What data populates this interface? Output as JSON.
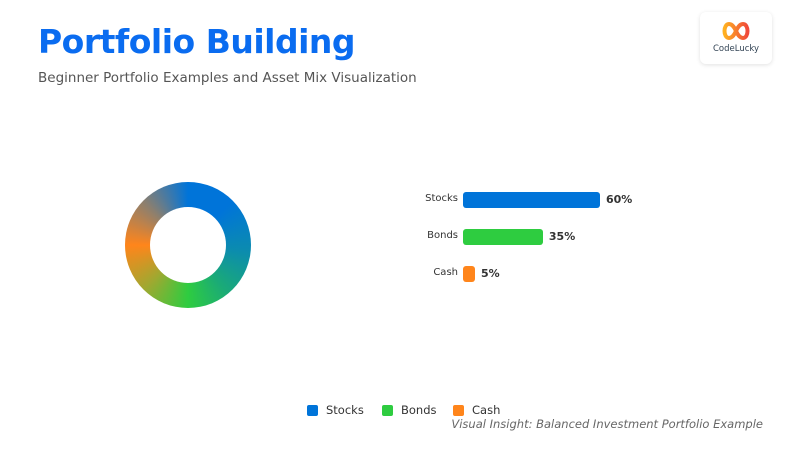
{
  "header": {
    "title": "Portfolio Building",
    "subtitle": "Beginner Portfolio Examples and Asset Mix Visualization"
  },
  "logo": {
    "text": "CodeLucky"
  },
  "chart_data": {
    "type": "bar",
    "categories": [
      "Stocks",
      "Bonds",
      "Cash"
    ],
    "values": [
      60,
      35,
      5
    ],
    "value_labels": [
      "60%",
      "35%",
      "5%"
    ],
    "unit": "%",
    "colors": [
      "#0074d9",
      "#2ecc40",
      "#ff851b"
    ],
    "donut": {
      "type": "pie",
      "style": "donut with conic gradient",
      "values": [
        60,
        35,
        5
      ]
    },
    "legend": {
      "placement": "bottom",
      "entries": [
        "Stocks",
        "Bonds",
        "Cash"
      ]
    }
  },
  "footer": {
    "caption": "Visual Insight: Balanced Investment Portfolio Example"
  }
}
